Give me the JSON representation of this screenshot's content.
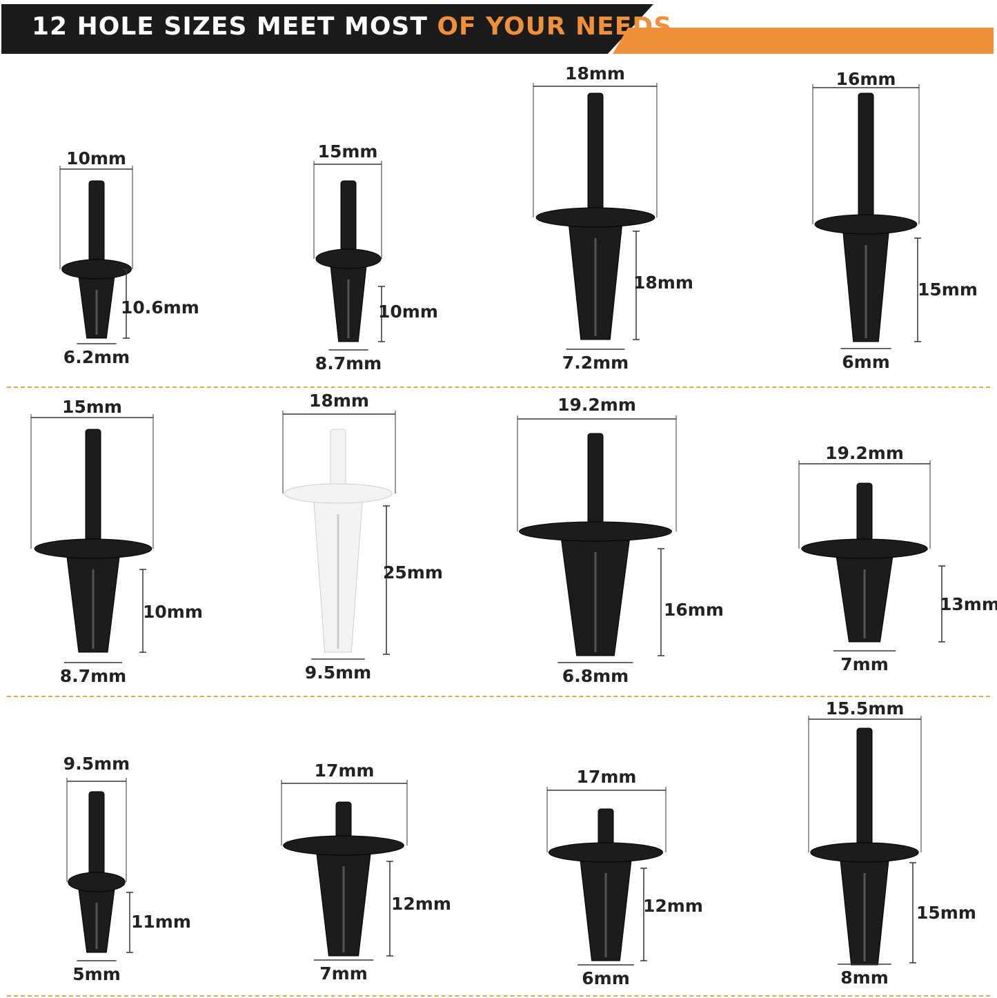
{
  "header": {
    "title_white": "12 HOLE SIZES MEET MOST ",
    "title_highlight": "OF YOUR NEEDS",
    "accent_color": "#f0913a",
    "band_color": "#1b1b1b"
  },
  "clips": [
    {
      "width": "10mm",
      "height": "10.6mm",
      "hole": "6.2mm",
      "color": "black"
    },
    {
      "width": "15mm",
      "height": "10mm",
      "hole": "8.7mm",
      "color": "black"
    },
    {
      "width": "18mm",
      "height": "18mm",
      "hole": "7.2mm",
      "color": "black"
    },
    {
      "width": "16mm",
      "height": "15mm",
      "hole": "6mm",
      "color": "black"
    },
    {
      "width": "15mm",
      "height": "10mm",
      "hole": "8.7mm",
      "color": "black"
    },
    {
      "width": "18mm",
      "height": "25mm",
      "hole": "9.5mm",
      "color": "white"
    },
    {
      "width": "19.2mm",
      "height": "16mm",
      "hole": "6.8mm",
      "color": "black"
    },
    {
      "width": "19.2mm",
      "height": "13mm",
      "hole": "7mm",
      "color": "black"
    },
    {
      "width": "9.5mm",
      "height": "11mm",
      "hole": "5mm",
      "color": "black"
    },
    {
      "width": "17mm",
      "height": "12mm",
      "hole": "7mm",
      "color": "black"
    },
    {
      "width": "17mm",
      "height": "12mm",
      "hole": "6mm",
      "color": "black"
    },
    {
      "width": "15.5mm",
      "height": "15mm",
      "hole": "8mm",
      "color": "black"
    }
  ]
}
